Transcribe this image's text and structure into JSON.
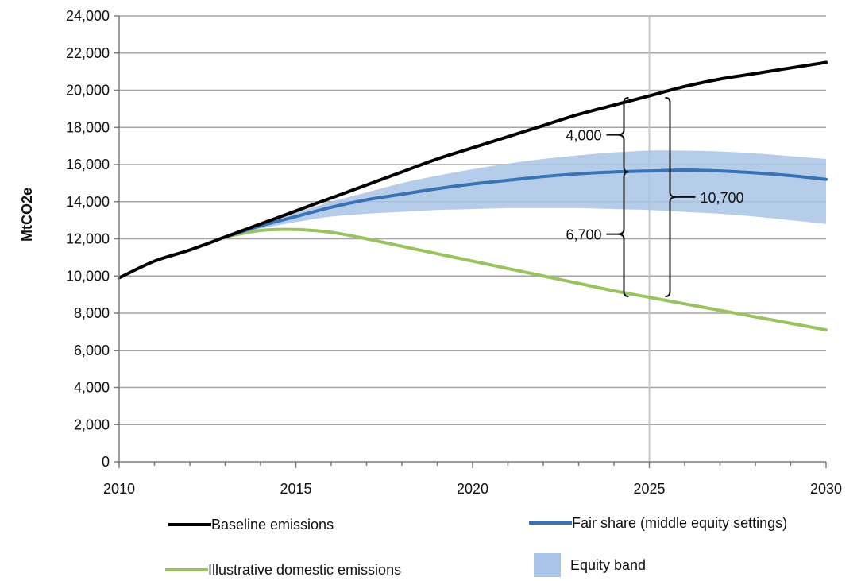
{
  "chart_data": {
    "type": "line",
    "title": "",
    "xlabel": "",
    "ylabel": "MtCO2e",
    "xlim": [
      2010,
      2030
    ],
    "ylim": [
      0,
      24000
    ],
    "x_ticks": [
      "2010",
      "2015",
      "2020",
      "2025",
      "2030"
    ],
    "y_ticks": [
      "0",
      "2,000",
      "4,000",
      "6,000",
      "8,000",
      "10,000",
      "12,000",
      "14,000",
      "16,000",
      "18,000",
      "20,000",
      "22,000",
      "24,000"
    ],
    "grid": true,
    "reference_line_x": 2025,
    "series": [
      {
        "name": "Baseline emissions",
        "color": "#000000",
        "x": [
          2010,
          2011,
          2012,
          2013,
          2014,
          2015,
          2016,
          2017,
          2018,
          2019,
          2020,
          2021,
          2022,
          2023,
          2024,
          2025,
          2026,
          2027,
          2028,
          2029,
          2030
        ],
        "y": [
          9900,
          10800,
          11400,
          12100,
          12800,
          13500,
          14200,
          14900,
          15600,
          16300,
          16900,
          17500,
          18100,
          18700,
          19200,
          19700,
          20200,
          20600,
          20900,
          21200,
          21500
        ]
      },
      {
        "name": "Fair share (middle equity settings)",
        "color": "#3a73b5",
        "x": [
          2013,
          2014,
          2015,
          2016,
          2017,
          2018,
          2019,
          2020,
          2021,
          2022,
          2023,
          2024,
          2025,
          2026,
          2027,
          2028,
          2029,
          2030
        ],
        "y": [
          12100,
          12700,
          13200,
          13700,
          14100,
          14400,
          14700,
          14950,
          15150,
          15350,
          15500,
          15600,
          15650,
          15700,
          15650,
          15550,
          15400,
          15200
        ]
      },
      {
        "name": "Illustrative domestic emissions",
        "color": "#9ac260",
        "x": [
          2013,
          2014,
          2015,
          2016,
          2017,
          2018,
          2019,
          2020,
          2021,
          2022,
          2023,
          2024,
          2025,
          2026,
          2027,
          2028,
          2029,
          2030
        ],
        "y": [
          12100,
          12450,
          12500,
          12350,
          12000,
          11600,
          11200,
          10800,
          10400,
          10000,
          9600,
          9200,
          8850,
          8500,
          8150,
          7800,
          7450,
          7100
        ]
      }
    ],
    "band": {
      "name": "Equity band",
      "color": "#a9c4e6",
      "x": [
        2013,
        2014,
        2015,
        2016,
        2017,
        2018,
        2019,
        2020,
        2021,
        2022,
        2023,
        2024,
        2025,
        2026,
        2027,
        2028,
        2029,
        2030
      ],
      "upper": [
        12100,
        12800,
        13400,
        14000,
        14500,
        15000,
        15400,
        15750,
        16050,
        16300,
        16500,
        16650,
        16750,
        16750,
        16700,
        16600,
        16450,
        16300
      ],
      "lower": [
        12100,
        12550,
        12900,
        13200,
        13350,
        13450,
        13550,
        13600,
        13650,
        13650,
        13650,
        13600,
        13550,
        13450,
        13350,
        13200,
        13000,
        12800
      ]
    },
    "annotations": [
      {
        "label": "4,000",
        "at_x": 2025,
        "from": 15600,
        "to": 19600,
        "side": "left"
      },
      {
        "label": "6,700",
        "at_x": 2025,
        "from": 8900,
        "to": 15600,
        "side": "left"
      },
      {
        "label": "10,700",
        "at_x": 2025,
        "from": 8900,
        "to": 19600,
        "side": "right"
      }
    ],
    "legend": {
      "placement": "bottom",
      "items": [
        {
          "label": "Baseline emissions",
          "kind": "line",
          "color": "#000000"
        },
        {
          "label": "Fair share (middle equity settings)",
          "kind": "line",
          "color": "#3a73b5"
        },
        {
          "label": "Illustrative domestic emissions",
          "kind": "line",
          "color": "#9ac260"
        },
        {
          "label": "Equity band",
          "kind": "box",
          "color": "#a9c4e6"
        }
      ]
    }
  }
}
